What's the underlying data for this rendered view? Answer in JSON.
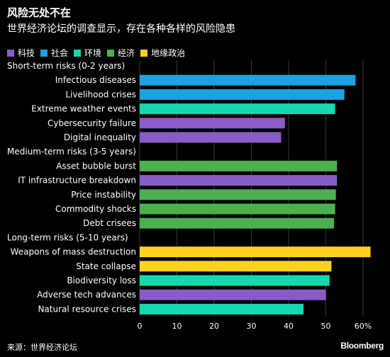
{
  "title": "风险无处不在",
  "subtitle": "世界经济论坛的调查显示，存在各种各样的风险隐患",
  "source": "来源：世界经济论坛",
  "brand": "Bloomberg",
  "chart_data": {
    "type": "bar",
    "orientation": "horizontal",
    "legend": [
      {
        "name": "科技",
        "color": "#8a5cc7"
      },
      {
        "name": "社会",
        "color": "#1aa3e0"
      },
      {
        "name": "环境",
        "color": "#14d9b0"
      },
      {
        "name": "经济",
        "color": "#4caf50"
      },
      {
        "name": "地缘政治",
        "color": "#ffd21f"
      }
    ],
    "xlim": [
      0,
      60
    ],
    "xticks": [
      0,
      10,
      20,
      30,
      40,
      50,
      60
    ],
    "xtick_suffix_last": "%",
    "groups": [
      {
        "label": "Short-term risks (0-2 years)",
        "items": [
          {
            "label": "Infectious diseases",
            "value": 58,
            "category": "社会"
          },
          {
            "label": "Livelihood crises",
            "value": 55,
            "category": "社会"
          },
          {
            "label": "Extreme weather events",
            "value": 52.5,
            "category": "环境"
          },
          {
            "label": "Cybersecurity failure",
            "value": 39,
            "category": "科技"
          },
          {
            "label": "Digital inequality",
            "value": 38,
            "category": "科技"
          }
        ]
      },
      {
        "label": "Medium-term risks (3-5 years)",
        "items": [
          {
            "label": "Asset bubble burst",
            "value": 53,
            "category": "经济"
          },
          {
            "label": "IT infrastructure breakdown",
            "value": 53,
            "category": "科技"
          },
          {
            "label": "Price instability",
            "value": 52.7,
            "category": "经济"
          },
          {
            "label": "Commodity shocks",
            "value": 52.5,
            "category": "经济"
          },
          {
            "label": "Debt crisees",
            "value": 52.2,
            "category": "经济"
          }
        ]
      },
      {
        "label": "Long-term risks (5-10 years)",
        "items": [
          {
            "label": "Weapons of mass destruction",
            "value": 62,
            "category": "地缘政治"
          },
          {
            "label": "State collapse",
            "value": 51.5,
            "category": "地缘政治"
          },
          {
            "label": "Biodiversity loss",
            "value": 51,
            "category": "环境"
          },
          {
            "label": "Adverse tech advances",
            "value": 50,
            "category": "科技"
          },
          {
            "label": "Natural resource crises",
            "value": 44,
            "category": "环境"
          }
        ]
      }
    ]
  }
}
